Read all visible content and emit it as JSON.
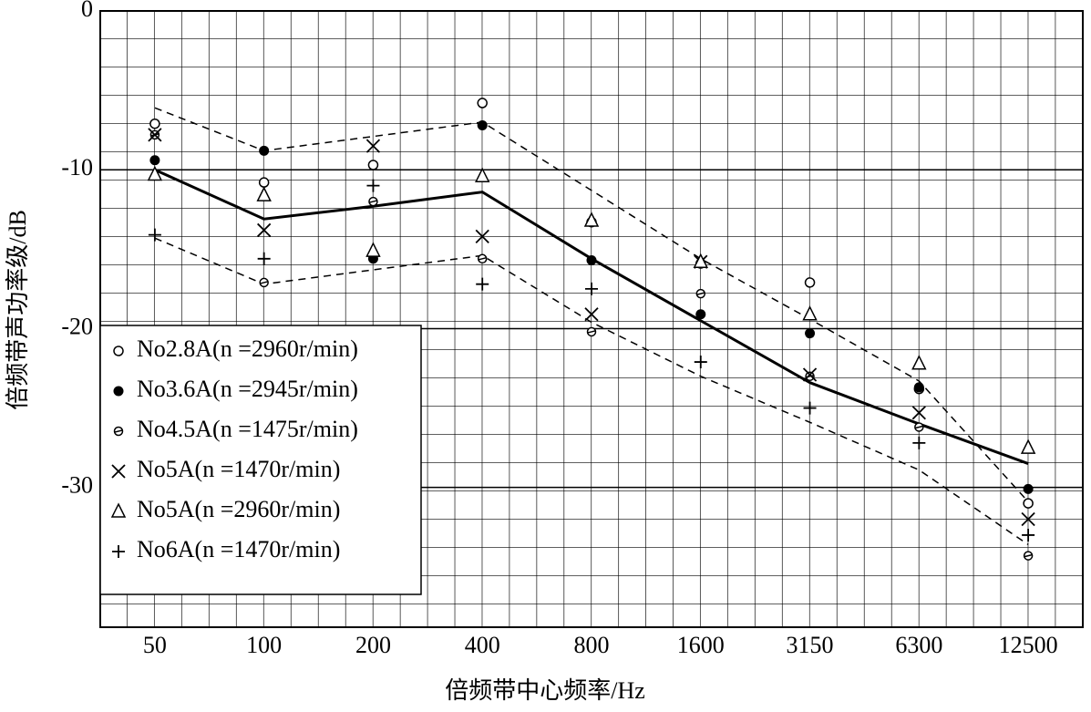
{
  "chart_data": {
    "type": "scatter",
    "x_label": "倍频带中心频率/Hz",
    "y_label": "倍频带声功率级/dB",
    "categories": [
      "50",
      "100",
      "200",
      "400",
      "800",
      "1600",
      "3150",
      "6300",
      "12500"
    ],
    "ylim": [
      -38.8,
      0
    ],
    "yticks": [
      0,
      -10,
      -20,
      -30
    ],
    "color": "#000000",
    "legend": "lower-left",
    "series": [
      {
        "name": "No2.8A(n =2960r/min)",
        "marker": "circle",
        "values": [
          -7.1,
          -10.8,
          -9.7,
          -5.8,
          -13.3,
          -15.9,
          -17.1,
          -23.8,
          -31.0
        ]
      },
      {
        "name": "No3.6A(n =2945r/min)",
        "marker": "filled-circle",
        "values": [
          -9.4,
          -8.8,
          -15.6,
          -7.2,
          -15.7,
          -19.1,
          -20.3,
          -23.7,
          -30.1
        ]
      },
      {
        "name": "No4.5A(n =1475r/min)",
        "marker": "hatched-circle",
        "values": [
          -7.8,
          -17.1,
          -12.0,
          -15.6,
          -20.2,
          -17.8,
          -23.0,
          -26.2,
          -34.3
        ]
      },
      {
        "name": "No5A(n =1470r/min)",
        "marker": "cross",
        "values": [
          -7.8,
          -13.8,
          -8.5,
          -14.2,
          -19.1,
          -15.8,
          -22.9,
          -25.3,
          -32.0
        ]
      },
      {
        "name": "No5A(n =2960r/min)",
        "marker": "triangle",
        "values": [
          -10.3,
          -11.6,
          -15.1,
          -10.4,
          -13.2,
          -15.8,
          -19.1,
          -22.2,
          -27.5
        ]
      },
      {
        "name": "No6A(n =1470r/min)",
        "marker": "plus",
        "values": [
          -14.1,
          -15.6,
          -11.0,
          -17.2,
          -17.5,
          -22.1,
          -25.0,
          -27.2,
          -33.0
        ]
      }
    ],
    "lines": [
      {
        "style": "solid",
        "values": [
          -10.0,
          -13.1,
          -12.3,
          -11.4,
          -15.6,
          -19.5,
          -23.4,
          -26.0,
          -28.5
        ]
      },
      {
        "style": "dashed",
        "values": [
          -6.1,
          -8.8,
          -7.9,
          -7.0,
          -11.3,
          -15.6,
          -19.4,
          -23.3,
          -30.9
        ]
      },
      {
        "style": "dashed",
        "values": [
          -14.3,
          -17.2,
          -16.3,
          -15.4,
          -19.6,
          -23.0,
          -25.9,
          -28.9,
          -33.6
        ]
      }
    ]
  }
}
